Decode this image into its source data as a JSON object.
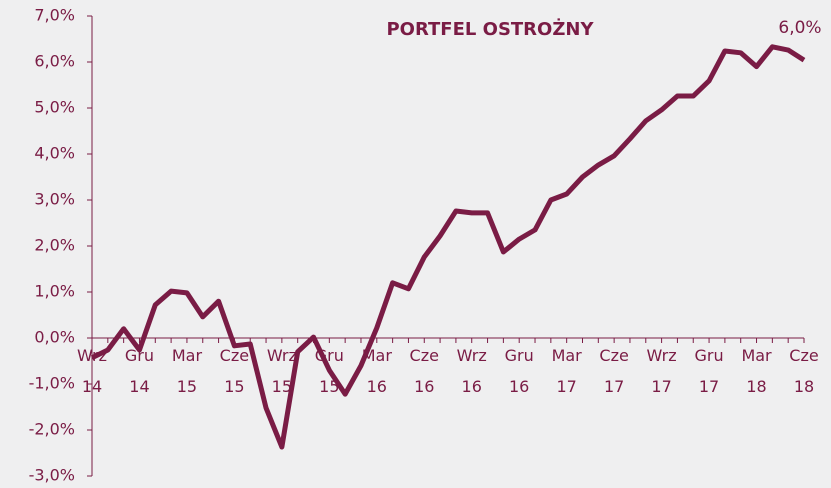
{
  "chart_data": {
    "type": "line",
    "title": "PORTFEL OSTROŻNY",
    "categories": [
      "Wrz 14",
      null,
      null,
      "Gru 14",
      null,
      null,
      "Mar 15",
      null,
      null,
      "Cze 15",
      null,
      null,
      "Wrz 15",
      null,
      null,
      "Gru 15",
      null,
      null,
      "Mar 16",
      null,
      null,
      "Cze 16",
      null,
      null,
      "Wrz 16",
      null,
      null,
      "Gru 16",
      null,
      null,
      "Mar 17",
      null,
      null,
      "Cze 17",
      null,
      null,
      "Wrz 17",
      null,
      null,
      "Gru 17",
      null,
      null,
      "Mar 18",
      null,
      null,
      "Cze 18"
    ],
    "series": [
      {
        "color": "#7a1c45",
        "values": [
          -0.43,
          -0.26,
          0.2,
          -0.26,
          0.72,
          1.02,
          0.98,
          0.46,
          0.8,
          -0.17,
          -0.13,
          -1.52,
          -2.37,
          -0.3,
          0.02,
          -0.7,
          -1.22,
          -0.6,
          0.22,
          1.2,
          1.07,
          1.76,
          2.22,
          2.76,
          2.72,
          2.72,
          1.87,
          2.15,
          2.35,
          3.0,
          3.13,
          3.5,
          3.76,
          3.96,
          4.33,
          4.72,
          4.96,
          5.26,
          5.26,
          5.59,
          6.24,
          6.2,
          5.9,
          6.33,
          6.26,
          6.04
        ],
        "value_labels": [
          null,
          null,
          null,
          null,
          null,
          null,
          null,
          null,
          null,
          null,
          null,
          null,
          null,
          null,
          null,
          null,
          null,
          null,
          null,
          null,
          null,
          null,
          null,
          null,
          null,
          null,
          null,
          null,
          null,
          null,
          null,
          null,
          null,
          null,
          null,
          null,
          null,
          null,
          null,
          null,
          null,
          null,
          null,
          null,
          null,
          "6,0%"
        ]
      }
    ],
    "ylim": [
      -3,
      7
    ],
    "yticks": [
      {
        "value": -3,
        "label": "-3,0%"
      },
      {
        "value": -2,
        "label": "-2,0%"
      },
      {
        "value": -1,
        "label": "-1,0%"
      },
      {
        "value": 0,
        "label": "0,0%"
      },
      {
        "value": 1,
        "label": "1,0%"
      },
      {
        "value": 2,
        "label": "2,0%"
      },
      {
        "value": 3,
        "label": "3,0%"
      },
      {
        "value": 4,
        "label": "4,0%"
      },
      {
        "value": 5,
        "label": "5,0%"
      },
      {
        "value": 6,
        "label": "6,0%"
      },
      {
        "value": 7,
        "label": "7,0%"
      }
    ]
  }
}
